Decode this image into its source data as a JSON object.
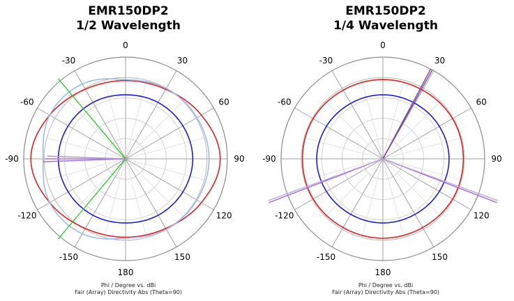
{
  "chart_data": [
    {
      "type": "polar-line",
      "title_line1": "EMR150DP2",
      "title_line2": "1/2 Wavelength",
      "caption_line1": "Phi / Degree vs. dBi",
      "caption_line2": "Fair (Array) Directivity Abs (Theta=90)",
      "angle_ticks": [
        "0",
        "30",
        "60",
        "90",
        "120",
        "150",
        "180",
        "-150",
        "-120",
        "-90",
        "-60",
        "-30"
      ],
      "grid": true,
      "series": [
        {
          "color": "#e02020",
          "kind": "curve",
          "phi": [
            0,
            30,
            60,
            90,
            120,
            150,
            180,
            -150,
            -120,
            -90,
            -60,
            -30
          ],
          "r": [
            0.77,
            0.79,
            0.86,
            0.93,
            0.86,
            0.79,
            0.77,
            0.79,
            0.86,
            0.93,
            0.86,
            0.79
          ]
        },
        {
          "color": "#9bb9ee",
          "kind": "curve",
          "phi": [
            0,
            30,
            60,
            90,
            120,
            150,
            180,
            -150,
            -120,
            -90,
            -60,
            -30
          ],
          "r": [
            0.78,
            0.8,
            0.81,
            0.82,
            0.81,
            0.8,
            0.78,
            0.85,
            0.86,
            0.81,
            0.86,
            0.85
          ]
        },
        {
          "color": "#1a1ae0",
          "kind": "curve",
          "phi": [
            0,
            30,
            60,
            90,
            120,
            150,
            180,
            -150,
            -120,
            -90,
            -60,
            -30
          ],
          "r": [
            0.63,
            0.64,
            0.65,
            0.66,
            0.65,
            0.64,
            0.63,
            0.64,
            0.65,
            0.66,
            0.65,
            0.64
          ]
        },
        {
          "color": "#33cc33",
          "kind": "ray",
          "phi": [
            -40,
            -140
          ],
          "r": [
            1.03,
            1.03
          ]
        },
        {
          "color": "#a070d0",
          "kind": "ray",
          "phi": [
            -90,
            -92
          ],
          "r": [
            0.79,
            0.81
          ]
        },
        {
          "color": "#b08fd8",
          "kind": "ray",
          "phi": [
            -88,
            -90
          ],
          "r": [
            0.77,
            0.79
          ]
        }
      ]
    },
    {
      "type": "polar-line",
      "title_line1": "EMR150DP2",
      "title_line2": "1/4 Wavelength",
      "caption_line1": "Phi / Degree vs. dBi",
      "caption_line2": "Fair (Array) Directivity Abs (Theta=90)",
      "angle_ticks": [
        "0",
        "30",
        "60",
        "90",
        "120",
        "150",
        "180",
        "-150",
        "-120",
        "-90",
        "-60",
        "-30"
      ],
      "grid": true,
      "series": [
        {
          "color": "#e02020",
          "kind": "curve",
          "phi": [
            0,
            30,
            60,
            90,
            120,
            150,
            180,
            -150,
            -120,
            -90,
            -60,
            -30
          ],
          "r": [
            0.78,
            0.78,
            0.79,
            0.79,
            0.79,
            0.78,
            0.78,
            0.78,
            0.79,
            0.79,
            0.79,
            0.78
          ]
        },
        {
          "color": "#1a1ae0",
          "kind": "curve",
          "phi": [
            0,
            30,
            60,
            90,
            120,
            150,
            180,
            -150,
            -120,
            -90,
            -60,
            -30
          ],
          "r": [
            0.63,
            0.63,
            0.64,
            0.65,
            0.64,
            0.63,
            0.63,
            0.63,
            0.64,
            0.65,
            0.64,
            0.63
          ]
        },
        {
          "color": "#7a4a9a",
          "kind": "ray",
          "phi": [
            28,
            29
          ],
          "r": [
            1.0,
            1.0
          ]
        },
        {
          "color": "#a070d0",
          "kind": "ray",
          "phi": [
            -111,
            111
          ],
          "r": [
            1.2,
            1.2
          ]
        },
        {
          "color": "#c0a8e0",
          "kind": "ray",
          "phi": [
            -110,
            110
          ],
          "r": [
            1.2,
            1.2
          ]
        }
      ]
    }
  ]
}
